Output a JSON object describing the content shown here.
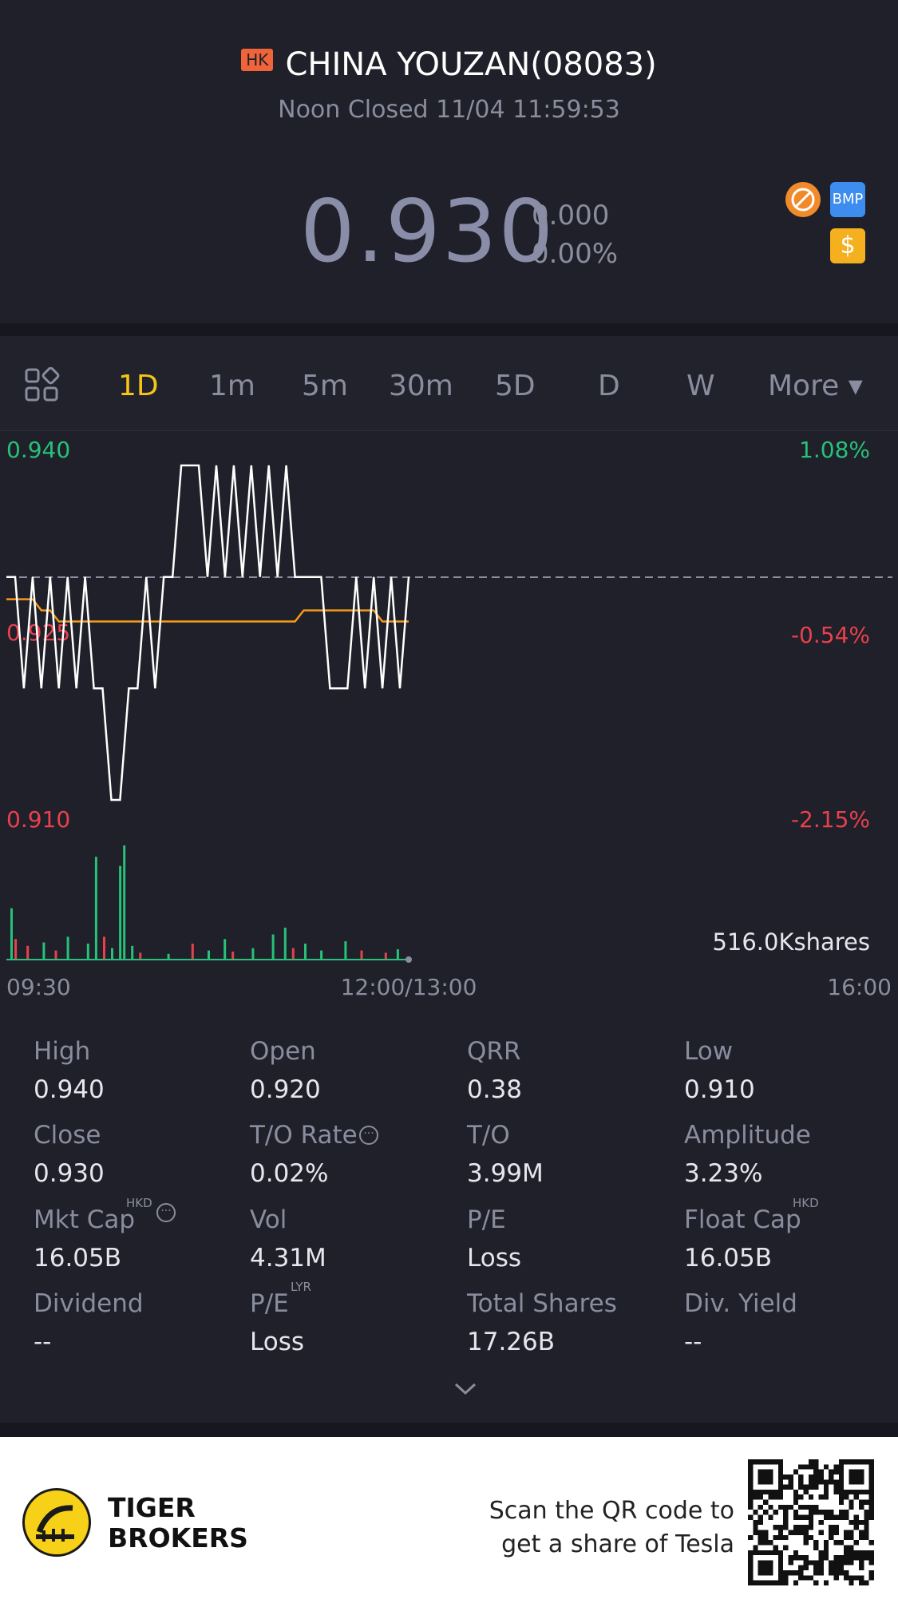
{
  "header": {
    "market_badge": "HK",
    "title": "CHINA YOUZAN(08083)",
    "status": "Noon Closed 11/04 11:59:53",
    "price": "0.930",
    "change": "0.000",
    "change_pct": "0.00%",
    "icons": [
      "no-short-icon",
      "bmp-icon",
      "dollar-icon"
    ],
    "bmp_label": "BMP",
    "dollar_label": "$"
  },
  "tabs": {
    "items": [
      "1D",
      "1m",
      "5m",
      "30m",
      "5D",
      "D",
      "W",
      "More ▾"
    ],
    "active": "1D"
  },
  "chart_data": {
    "type": "line",
    "price_axis": {
      "top": "0.940",
      "mid": "0.925",
      "bottom": "0.910"
    },
    "pct_axis": {
      "top": "1.08%",
      "mid": "-0.54%",
      "bottom": "-2.15%"
    },
    "prev_close": 0.93,
    "ylim": [
      0.91,
      0.94
    ],
    "x_ticks": [
      "09:30",
      "12:00/13:00",
      "16:00"
    ],
    "volume_label": "516.0Kshares",
    "series": [
      {
        "values": [
          0.93,
          0.93,
          0.92,
          0.93,
          0.92,
          0.93,
          0.92,
          0.93,
          0.92,
          0.93,
          0.92,
          0.92,
          0.91,
          0.91,
          0.92,
          0.92,
          0.93,
          0.92,
          0.93,
          0.93,
          0.94,
          0.94,
          0.94,
          0.93,
          0.94,
          0.93,
          0.94,
          0.93,
          0.94,
          0.93,
          0.94,
          0.93,
          0.94,
          0.93,
          0.93,
          0.93,
          0.93,
          0.92,
          0.92,
          0.92,
          0.93,
          0.92,
          0.93,
          0.92,
          0.93,
          0.92,
          0.93
        ]
      },
      {
        "values": [
          0.928,
          0.928,
          0.928,
          0.928,
          0.927,
          0.927,
          0.926,
          0.926,
          0.926,
          0.926,
          0.926,
          0.926,
          0.926,
          0.926,
          0.926,
          0.926,
          0.926,
          0.926,
          0.926,
          0.926,
          0.926,
          0.926,
          0.926,
          0.926,
          0.926,
          0.926,
          0.926,
          0.926,
          0.926,
          0.926,
          0.926,
          0.926,
          0.926,
          0.926,
          0.927,
          0.927,
          0.927,
          0.927,
          0.927,
          0.927,
          0.927,
          0.927,
          0.927,
          0.926,
          0.926,
          0.926,
          0.926
        ]
      }
    ],
    "volume": [
      {
        "i": 1,
        "v": 45,
        "c": "g"
      },
      {
        "i": 2,
        "v": 18,
        "c": "r"
      },
      {
        "i": 5,
        "v": 12,
        "c": "r"
      },
      {
        "i": 9,
        "v": 15,
        "c": "g"
      },
      {
        "i": 12,
        "v": 8,
        "c": "r"
      },
      {
        "i": 15,
        "v": 20,
        "c": "g"
      },
      {
        "i": 20,
        "v": 14,
        "c": "g"
      },
      {
        "i": 22,
        "v": 90,
        "c": "g"
      },
      {
        "i": 24,
        "v": 20,
        "c": "r"
      },
      {
        "i": 26,
        "v": 10,
        "c": "g"
      },
      {
        "i": 28,
        "v": 82,
        "c": "g"
      },
      {
        "i": 29,
        "v": 100,
        "c": "g"
      },
      {
        "i": 31,
        "v": 12,
        "c": "g"
      },
      {
        "i": 33,
        "v": 6,
        "c": "r"
      },
      {
        "i": 40,
        "v": 5,
        "c": "g"
      },
      {
        "i": 46,
        "v": 14,
        "c": "r"
      },
      {
        "i": 50,
        "v": 8,
        "c": "g"
      },
      {
        "i": 54,
        "v": 18,
        "c": "g"
      },
      {
        "i": 56,
        "v": 7,
        "c": "r"
      },
      {
        "i": 61,
        "v": 10,
        "c": "g"
      },
      {
        "i": 66,
        "v": 22,
        "c": "g"
      },
      {
        "i": 69,
        "v": 28,
        "c": "g"
      },
      {
        "i": 71,
        "v": 10,
        "c": "r"
      },
      {
        "i": 74,
        "v": 14,
        "c": "g"
      },
      {
        "i": 78,
        "v": 8,
        "c": "g"
      },
      {
        "i": 84,
        "v": 16,
        "c": "g"
      },
      {
        "i": 88,
        "v": 8,
        "c": "r"
      },
      {
        "i": 94,
        "v": 6,
        "c": "r"
      },
      {
        "i": 97,
        "v": 9,
        "c": "g"
      }
    ]
  },
  "stats": {
    "rows": [
      [
        {
          "label": "High",
          "value": "0.940"
        },
        {
          "label": "Open",
          "value": "0.920"
        },
        {
          "label": "QRR",
          "value": "0.38"
        },
        {
          "label": "Low",
          "value": "0.910"
        }
      ],
      [
        {
          "label": "Close",
          "value": "0.930"
        },
        {
          "label": "T/O Rate",
          "value": "0.02%"
        },
        {
          "label": "T/O",
          "value": "3.99M"
        },
        {
          "label": "Amplitude",
          "value": "3.23%"
        }
      ],
      [
        {
          "label": "Mkt Cap",
          "value": "16.05B"
        },
        {
          "label": "Vol",
          "value": "4.31M"
        },
        {
          "label": "P/E",
          "value": "Loss"
        },
        {
          "label": "Float Cap",
          "value": "16.05B"
        }
      ],
      [
        {
          "label": "Dividend",
          "value": "--"
        },
        {
          "label": "P/E",
          "value": "Loss"
        },
        {
          "label": "Total Shares",
          "value": "17.26B"
        },
        {
          "label": "Div. Yield",
          "value": "--"
        }
      ]
    ],
    "sup_hkd": "HKD",
    "sup_lyr": "LYR",
    "info_glyph": "···"
  },
  "footer": {
    "brand_line1": "TIGER",
    "brand_line2": "BROKERS",
    "scan_line1": "Scan the QR code to",
    "scan_line2": "get a share of Tesla"
  },
  "colors": {
    "background": "#1f2029",
    "accent": "#f5c518",
    "up": "#27c17a",
    "down": "#e8414d",
    "avg_line": "#f59a1a"
  }
}
